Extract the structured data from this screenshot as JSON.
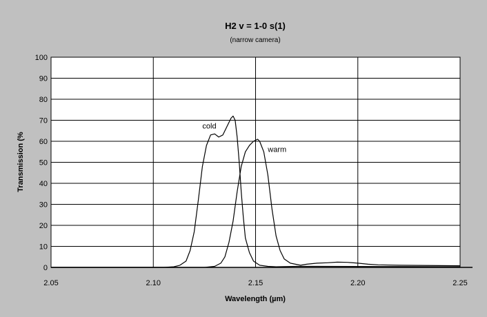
{
  "chart_data": {
    "type": "line",
    "title": "H2 v = 1-0 s(1)",
    "subtitle": "(narrow camera)",
    "xlabel": "Wavelength (µm)",
    "ylabel": "Transmission (%",
    "xlim": [
      2.05,
      2.25
    ],
    "ylim": [
      0,
      100
    ],
    "x_ticks": [
      "2.05",
      "2.10",
      "2.15",
      "2.20",
      "2.25"
    ],
    "y_ticks": [
      "0",
      "10",
      "20",
      "30",
      "40",
      "50",
      "60",
      "70",
      "80",
      "90",
      "100"
    ],
    "grid": true,
    "legend": "none",
    "series": [
      {
        "name": "cold",
        "color": "#000000",
        "label_at": [
          2.124,
          66
        ],
        "points": [
          [
            2.05,
            0
          ],
          [
            2.105,
            0
          ],
          [
            2.11,
            0.3
          ],
          [
            2.113,
            1
          ],
          [
            2.116,
            3
          ],
          [
            2.118,
            8
          ],
          [
            2.12,
            17
          ],
          [
            2.122,
            32
          ],
          [
            2.124,
            48
          ],
          [
            2.126,
            58
          ],
          [
            2.128,
            63
          ],
          [
            2.13,
            63.5
          ],
          [
            2.132,
            62
          ],
          [
            2.134,
            63
          ],
          [
            2.136,
            67
          ],
          [
            2.138,
            71
          ],
          [
            2.139,
            72
          ],
          [
            2.14,
            70
          ],
          [
            2.141,
            62
          ],
          [
            2.142,
            50
          ],
          [
            2.143,
            36
          ],
          [
            2.144,
            24
          ],
          [
            2.145,
            14
          ],
          [
            2.147,
            7
          ],
          [
            2.149,
            3
          ],
          [
            2.152,
            1
          ],
          [
            2.156,
            0.5
          ],
          [
            2.16,
            0.3
          ],
          [
            2.17,
            0.5
          ],
          [
            2.18,
            0.5
          ],
          [
            2.25,
            0.3
          ]
        ]
      },
      {
        "name": "warm",
        "color": "#000000",
        "label_at": [
          2.156,
          55
        ],
        "points": [
          [
            2.05,
            0
          ],
          [
            2.125,
            0
          ],
          [
            2.13,
            0.5
          ],
          [
            2.133,
            2
          ],
          [
            2.135,
            5
          ],
          [
            2.137,
            12
          ],
          [
            2.139,
            22
          ],
          [
            2.141,
            36
          ],
          [
            2.143,
            48
          ],
          [
            2.145,
            55
          ],
          [
            2.147,
            58
          ],
          [
            2.149,
            60
          ],
          [
            2.151,
            61
          ],
          [
            2.152,
            60
          ],
          [
            2.154,
            55
          ],
          [
            2.156,
            44
          ],
          [
            2.158,
            28
          ],
          [
            2.16,
            15
          ],
          [
            2.162,
            8
          ],
          [
            2.164,
            4
          ],
          [
            2.167,
            2
          ],
          [
            2.172,
            1
          ],
          [
            2.175,
            1.5
          ],
          [
            2.18,
            2
          ],
          [
            2.185,
            2.2
          ],
          [
            2.19,
            2.5
          ],
          [
            2.195,
            2.4
          ],
          [
            2.2,
            2
          ],
          [
            2.205,
            1.5
          ],
          [
            2.21,
            1.2
          ],
          [
            2.22,
            1
          ],
          [
            2.25,
            0.8
          ]
        ]
      }
    ]
  }
}
